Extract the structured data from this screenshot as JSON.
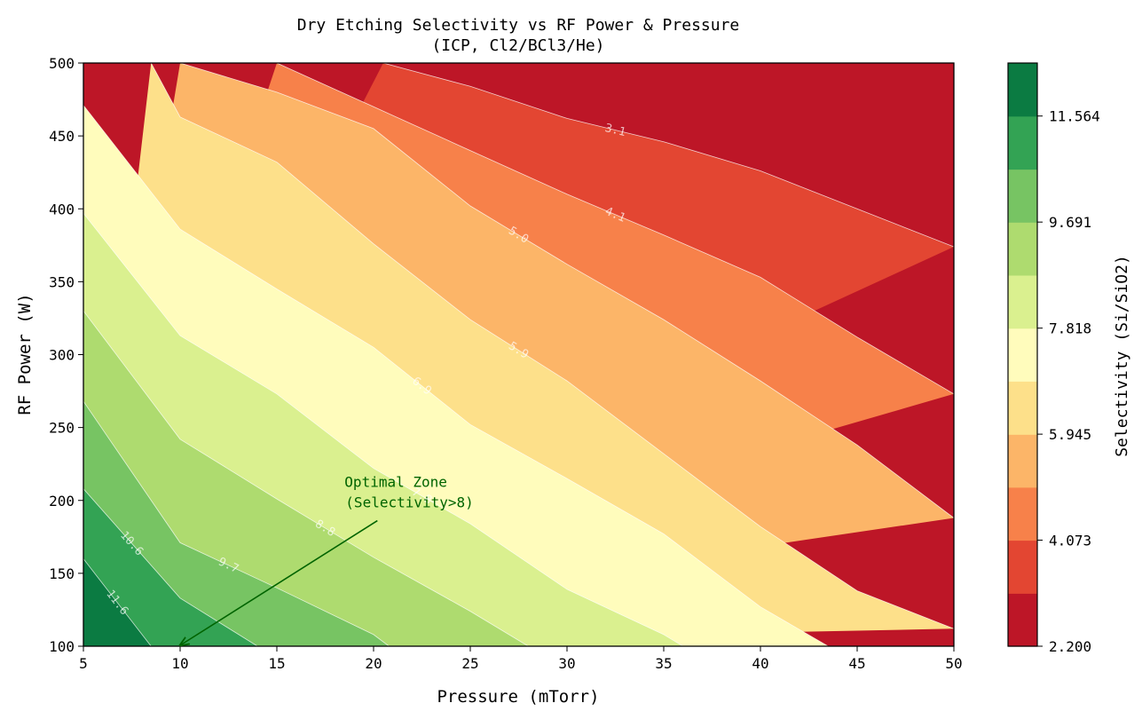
{
  "chart_data": {
    "type": "contour",
    "title": "Dry Etching Selectivity vs RF Power & Pressure",
    "subtitle": "(ICP, Cl2/BCl3/He)",
    "xlabel": "Pressure (mTorr)",
    "ylabel": "RF Power (W)",
    "xlim": [
      5,
      50
    ],
    "ylim": [
      100,
      500
    ],
    "xticks": [
      "5",
      "10",
      "15",
      "20",
      "25",
      "30",
      "35",
      "40",
      "45",
      "50"
    ],
    "yticks": [
      "100",
      "150",
      "200",
      "250",
      "300",
      "350",
      "400",
      "450",
      "500"
    ],
    "levels": [
      2.2,
      3.136,
      4.073,
      5.009,
      5.945,
      6.882,
      7.818,
      8.755,
      9.691,
      10.627,
      11.564,
      12.5
    ],
    "band_colors": [
      "#bd1627",
      "#e34632",
      "#f7814a",
      "#fcb568",
      "#fde08a",
      "#fffcbc",
      "#daf08f",
      "#aedb6f",
      "#77c463",
      "#33a354",
      "#0b7b42"
    ],
    "contour_lines": [
      {
        "label": "3.1",
        "points": [
          [
            20.5,
            500
          ],
          [
            25,
            484
          ],
          [
            30,
            462
          ],
          [
            35,
            446
          ],
          [
            40,
            426
          ],
          [
            45,
            400
          ],
          [
            50,
            374
          ]
        ]
      },
      {
        "label": "4.1",
        "points": [
          [
            15,
            500
          ],
          [
            20,
            470
          ],
          [
            25,
            440
          ],
          [
            30,
            410
          ],
          [
            35,
            382
          ],
          [
            40,
            353
          ],
          [
            45,
            312
          ],
          [
            50,
            273
          ]
        ]
      },
      {
        "label": "5.0",
        "points": [
          [
            10,
            500
          ],
          [
            15,
            480
          ],
          [
            20,
            455
          ],
          [
            25,
            402
          ],
          [
            30,
            362
          ],
          [
            35,
            324
          ],
          [
            40,
            282
          ],
          [
            45,
            238
          ],
          [
            50,
            188
          ]
        ]
      },
      {
        "label": "5.9",
        "points": [
          [
            8.5,
            500
          ],
          [
            10,
            463
          ],
          [
            15,
            432
          ],
          [
            20,
            376
          ],
          [
            25,
            324
          ],
          [
            30,
            282
          ],
          [
            35,
            232
          ],
          [
            40,
            182
          ],
          [
            45,
            138
          ],
          [
            50,
            112
          ]
        ]
      },
      {
        "label": "6.9",
        "points": [
          [
            5,
            471
          ],
          [
            10,
            386
          ],
          [
            15,
            345
          ],
          [
            20,
            305
          ],
          [
            25,
            252
          ],
          [
            30,
            215
          ],
          [
            35,
            177
          ],
          [
            40,
            127
          ],
          [
            43.5,
            100
          ]
        ]
      },
      {
        "label": "7.8",
        "points": [
          [
            5,
            397
          ],
          [
            10,
            313
          ],
          [
            15,
            273
          ],
          [
            20,
            222
          ],
          [
            25,
            184
          ],
          [
            30,
            139
          ],
          [
            35,
            108
          ],
          [
            36,
            100
          ]
        ]
      },
      {
        "label": "8.8",
        "points": [
          [
            5,
            330
          ],
          [
            10,
            242
          ],
          [
            15,
            201
          ],
          [
            20,
            161
          ],
          [
            25,
            124
          ],
          [
            28,
            100
          ]
        ]
      },
      {
        "label": "9.7",
        "points": [
          [
            5,
            268
          ],
          [
            10,
            171
          ],
          [
            15,
            140
          ],
          [
            20,
            108
          ],
          [
            20.8,
            100
          ]
        ]
      },
      {
        "label": "10.6",
        "points": [
          [
            5,
            208
          ],
          [
            10,
            133
          ],
          [
            14,
            100
          ]
        ]
      },
      {
        "label": "11.6",
        "points": [
          [
            5,
            160
          ],
          [
            8.5,
            100
          ]
        ]
      }
    ],
    "annotation": {
      "text_line1": "Optimal Zone",
      "text_line2": "(Selectivity>8)",
      "text_at": [
        18.5,
        208
      ],
      "arrow_to": [
        10,
        100
      ],
      "color": "#006400"
    },
    "colorbar": {
      "label": "Selectivity (Si/SiO2)",
      "range": [
        2.2,
        12.5
      ],
      "ticks": [
        {
          "value": 2.2,
          "label": "2.200"
        },
        {
          "value": 4.073,
          "label": "4.073"
        },
        {
          "value": 5.945,
          "label": "5.945"
        },
        {
          "value": 7.818,
          "label": "7.818"
        },
        {
          "value": 9.691,
          "label": "9.691"
        },
        {
          "value": 11.564,
          "label": "11.564"
        }
      ]
    }
  }
}
